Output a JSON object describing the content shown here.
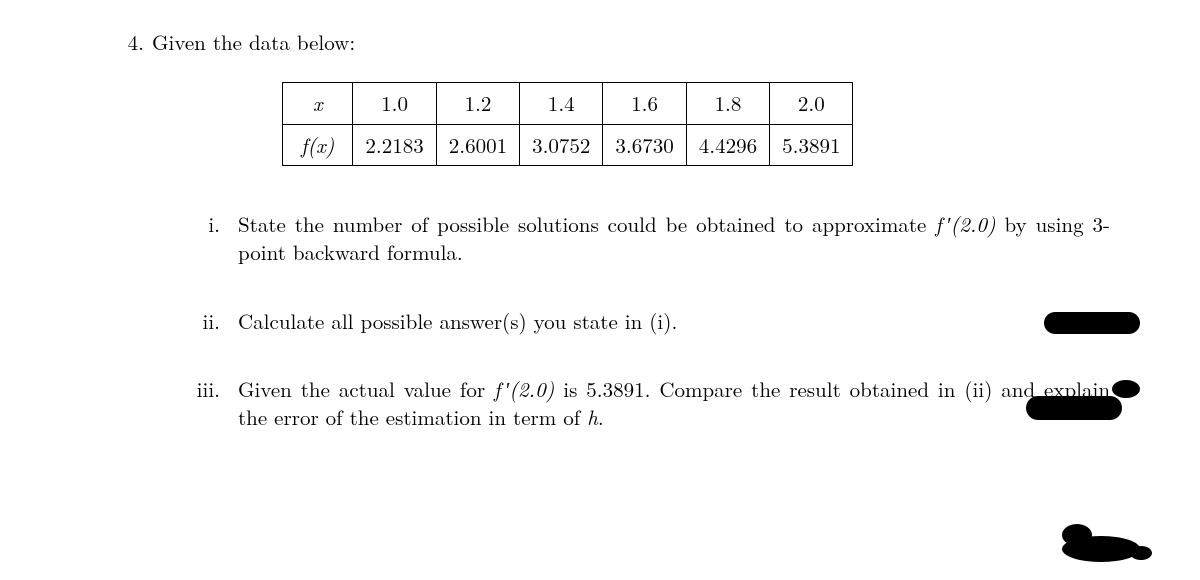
{
  "problem": {
    "number": "4.",
    "intro": "Given the data below:"
  },
  "table": {
    "row_header_x": "x",
    "row_header_fx": "f(x)",
    "x_values": [
      "1.0",
      "1.2",
      "1.4",
      "1.6",
      "1.8",
      "2.0"
    ],
    "fx_values": [
      "2.2183",
      "2.6001",
      "3.0752",
      "3.6730",
      "4.4296",
      "5.3891"
    ],
    "border_color": "#000000",
    "cell_fontsize": 21,
    "background_color": "#ffffff"
  },
  "subparts": {
    "i": {
      "label": "i.",
      "text_pre": "State the number of possible solutions could be obtained to approximate ",
      "math": "f ′(2.0)",
      "text_post": " by using 3-point backward formula."
    },
    "ii": {
      "label": "ii.",
      "text": "Calculate all possible answer(s) you state in (i)."
    },
    "iii": {
      "label": "iii.",
      "text_pre": "Given the actual value for ",
      "math": "f ′(2.0)",
      "text_mid": " is 5.3891. Compare the result obtained in (ii) and explain the error of the estimation in term of ",
      "math2": "h",
      "text_post": "."
    }
  },
  "styling": {
    "page_bg": "#ffffff",
    "text_color": "#000000",
    "base_fontsize": 21,
    "font_family": "Computer Modern / serif",
    "redaction_color": "#000000"
  }
}
